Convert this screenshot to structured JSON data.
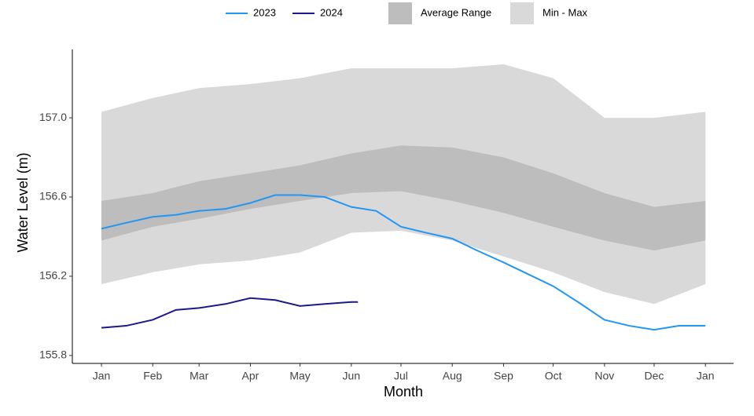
{
  "chart_data": {
    "type": "line",
    "x_label": "Month",
    "y_label": "Water Level (m)",
    "xlim": [
      -17.6,
      382
    ],
    "ylim": [
      155.76,
      157.345
    ],
    "xticks": [
      {
        "value": 0,
        "label": "Jan"
      },
      {
        "value": 31,
        "label": "Feb"
      },
      {
        "value": 59,
        "label": "Mar"
      },
      {
        "value": 90,
        "label": "Apr"
      },
      {
        "value": 120,
        "label": "May"
      },
      {
        "value": 151,
        "label": "Jun"
      },
      {
        "value": 181,
        "label": "Jul"
      },
      {
        "value": 212,
        "label": "Aug"
      },
      {
        "value": 243,
        "label": "Sep"
      },
      {
        "value": 273,
        "label": "Oct"
      },
      {
        "value": 304,
        "label": "Nov"
      },
      {
        "value": 334,
        "label": "Dec"
      },
      {
        "value": 365,
        "label": "Jan"
      }
    ],
    "yticks": [
      155.8,
      156.2,
      156.6,
      {
        "value": 157,
        "label": "157.0"
      }
    ],
    "bands": [
      {
        "name": "Min - Max",
        "color": "#d9d9d9",
        "x": [
          0,
          31,
          59,
          90,
          120,
          151,
          181,
          212,
          243,
          273,
          304,
          334,
          365
        ],
        "lower": [
          156.16,
          156.22,
          156.26,
          156.28,
          156.32,
          156.42,
          156.43,
          156.38,
          156.3,
          156.22,
          156.12,
          156.06,
          156.16
        ],
        "upper": [
          157.03,
          157.1,
          157.15,
          157.17,
          157.2,
          157.25,
          157.25,
          157.25,
          157.27,
          157.2,
          157.0,
          157.0,
          157.03
        ]
      },
      {
        "name": "Average Range",
        "color": "#bdbdbd",
        "x": [
          0,
          31,
          59,
          90,
          120,
          151,
          181,
          212,
          243,
          273,
          304,
          334,
          365
        ],
        "lower": [
          156.38,
          156.45,
          156.49,
          156.54,
          156.58,
          156.62,
          156.63,
          156.58,
          156.52,
          156.45,
          156.38,
          156.33,
          156.38
        ],
        "upper": [
          156.58,
          156.62,
          156.68,
          156.72,
          156.76,
          156.82,
          156.86,
          156.85,
          156.8,
          156.72,
          156.62,
          156.55,
          156.58
        ]
      }
    ],
    "series": [
      {
        "name": "2023",
        "color": "#2196f3",
        "x": [
          0,
          15,
          31,
          45,
          59,
          75,
          90,
          105,
          120,
          135,
          151,
          166,
          181,
          196,
          212,
          227,
          243,
          258,
          273,
          288,
          304,
          319,
          334,
          349,
          365
        ],
        "values": [
          156.44,
          156.47,
          156.5,
          156.51,
          156.53,
          156.54,
          156.57,
          156.61,
          156.61,
          156.6,
          156.55,
          156.53,
          156.45,
          156.42,
          156.39,
          156.33,
          156.27,
          156.21,
          156.15,
          156.07,
          155.98,
          155.95,
          155.93,
          155.95,
          155.95
        ]
      },
      {
        "name": "2024",
        "color": "#1a1a8c",
        "x": [
          0,
          15,
          31,
          45,
          59,
          75,
          90,
          105,
          120,
          135,
          151,
          155
        ],
        "values": [
          155.94,
          155.95,
          155.98,
          156.03,
          156.04,
          156.06,
          156.09,
          156.08,
          156.05,
          156.06,
          156.07,
          156.07
        ]
      }
    ]
  }
}
